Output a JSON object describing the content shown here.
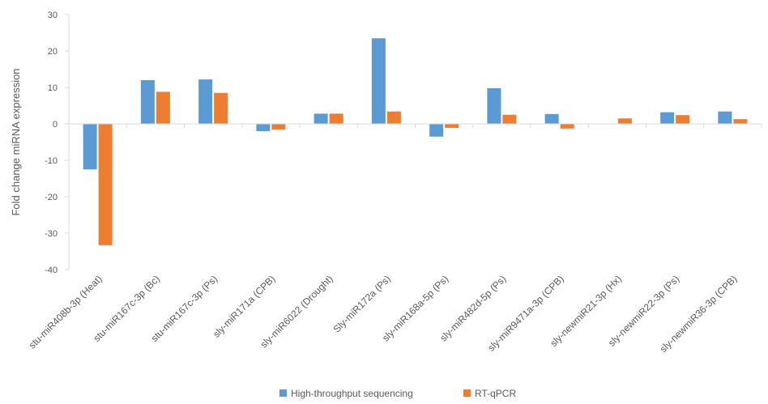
{
  "chart_data": {
    "type": "bar",
    "title": "",
    "xlabel": "",
    "ylabel": "Fold change miRNA expression",
    "ylim": [
      -40,
      30
    ],
    "yticks": [
      30,
      20,
      10,
      0,
      -10,
      -20,
      -30,
      -40
    ],
    "grid": false,
    "legend_position": "bottom",
    "categories": [
      "stu-miR408b-3p (Heat)",
      "stu-miR167c-3p (Bc)",
      "stu-miR167c-3p (Ps)",
      "sly-miR171a (CPB)",
      "sly-miR6022 (Drought)",
      "Sly-miR172a (Ps)",
      "sly-miR168a-5p (Ps)",
      "sly-miR482d-5p (Ps)",
      "sly-miR9471a-3p (CPB)",
      "sly-newmiR21-3p (Hx)",
      "sly-newmiR22-3p (Ps)",
      "sly-newmiR36-3p (CPB)"
    ],
    "series": [
      {
        "name": "High-throughput sequencing",
        "color": "#5B9BD5",
        "values": [
          -12.5,
          12,
          12.2,
          -2,
          2.8,
          23.5,
          -3.5,
          9.8,
          2.7,
          0,
          3.2,
          3.4
        ]
      },
      {
        "name": "RT-qPCR",
        "color": "#ED7D31",
        "values": [
          -33.3,
          8.8,
          8.5,
          -1.6,
          2.8,
          3.4,
          -1.1,
          2.5,
          -1.3,
          1.5,
          2.4,
          1.3
        ]
      }
    ]
  }
}
